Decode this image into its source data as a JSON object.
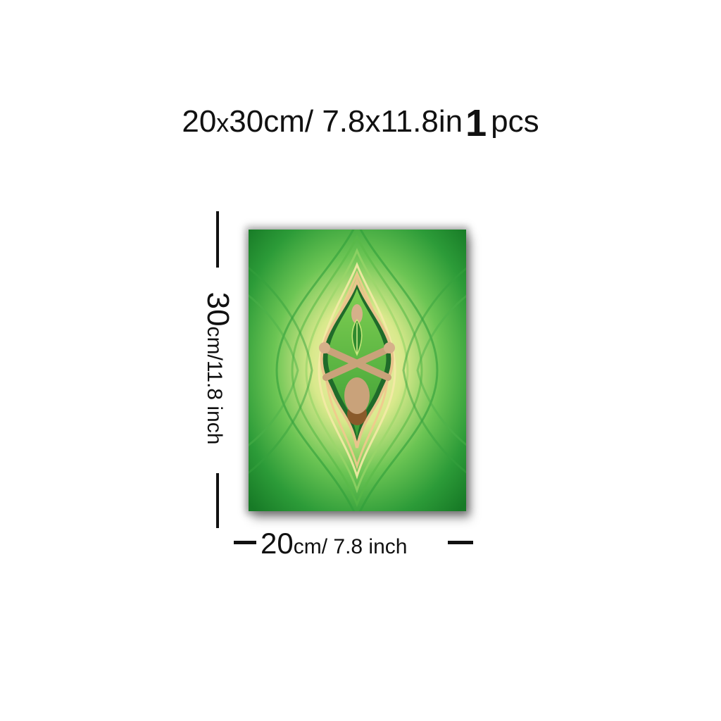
{
  "header": {
    "size_part1": "20",
    "size_x": "x",
    "size_part2": "30cm/ 7.8x11.8in",
    "count": "1",
    "unit": "pcs"
  },
  "dimensions": {
    "height_num": "30",
    "height_unit": "cm/11.8 inch",
    "width_num": "20",
    "width_unit": "cm/ 7.8 inch"
  },
  "colors": {
    "deep_green": "#1e8a2c",
    "mid_green": "#3db24a",
    "light_green": "#8fd66a",
    "cream": "#f4e7a8",
    "peach": "#e9c48c"
  },
  "artwork": {
    "subject": "figure-with-crossed-arms-in-leaf-icon"
  }
}
